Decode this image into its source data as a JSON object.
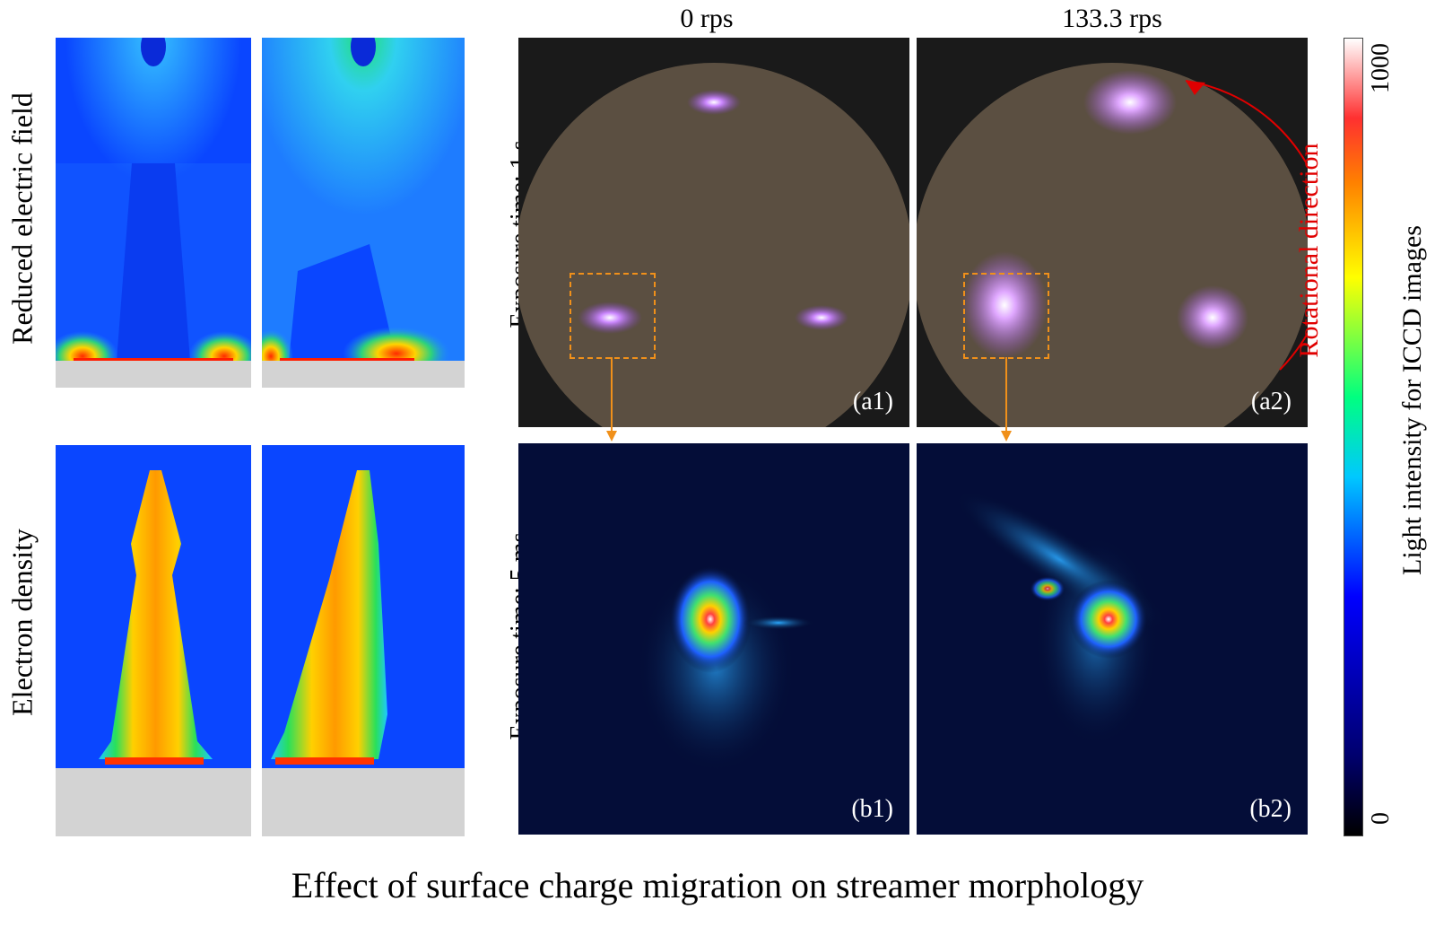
{
  "left": {
    "row1_label": "Reduced electric field",
    "row2_label": "Electron density"
  },
  "columns": {
    "col1_header": "0 rps",
    "col2_header": "133.3 rps"
  },
  "rows": {
    "row_a_label": "Exposure time: 1 s",
    "row_b_label": "Exposure time: 5 ms"
  },
  "panels": {
    "a1": "(a1)",
    "a2": "(a2)",
    "b1": "(b1)",
    "b2": "(b2)",
    "rotation_label": "Rotational direction"
  },
  "colorbar": {
    "title": "Light intensity for ICCD images",
    "max": "1000",
    "min": "0"
  },
  "caption": "Effect of surface charge migration on streamer morphology"
}
